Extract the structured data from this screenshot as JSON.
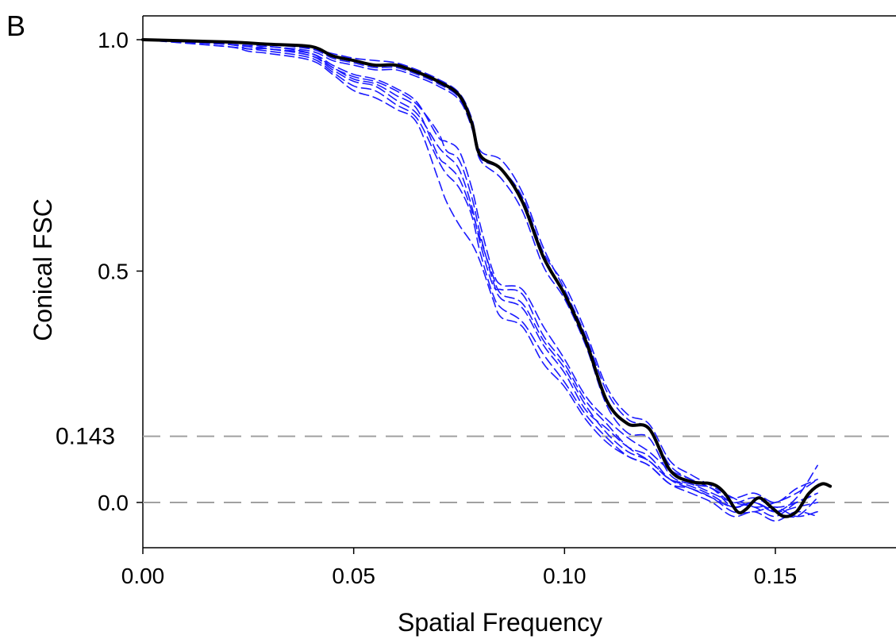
{
  "panel_label": "B",
  "chart_data": {
    "type": "line",
    "title": "",
    "xlabel": "Spatial Frequency",
    "ylabel": "Conical FSC",
    "xlim": [
      0.0,
      0.18
    ],
    "ylim": [
      -0.1,
      1.05
    ],
    "x_ticks": [
      "0.00",
      "0.05",
      "0.10",
      "0.15"
    ],
    "y_ticks": [
      "0.0",
      "0.5",
      "1.0"
    ],
    "reference_lines": [
      {
        "label": "0.143",
        "y": 0.143,
        "style": "dashed",
        "color": "#a0a0a0"
      },
      {
        "label": "",
        "y": 0.0,
        "style": "dashed",
        "color": "#a0a0a0"
      }
    ],
    "colors": {
      "overall": "#000000",
      "directional": "#1a1aff"
    },
    "series": [
      {
        "style": "solid",
        "color": "#000000",
        "x": [
          0.0,
          0.02,
          0.03,
          0.04,
          0.045,
          0.05,
          0.055,
          0.06,
          0.065,
          0.07,
          0.075,
          0.078,
          0.08,
          0.085,
          0.09,
          0.095,
          0.1,
          0.105,
          0.11,
          0.115,
          0.12,
          0.125,
          0.13,
          0.135,
          0.138,
          0.141,
          0.143,
          0.146,
          0.149,
          0.152,
          0.155,
          0.158,
          0.161,
          0.163
        ],
        "y": [
          1.0,
          0.995,
          0.99,
          0.985,
          0.965,
          0.955,
          0.945,
          0.945,
          0.93,
          0.91,
          0.88,
          0.82,
          0.75,
          0.72,
          0.65,
          0.53,
          0.45,
          0.35,
          0.22,
          0.17,
          0.16,
          0.07,
          0.045,
          0.04,
          0.02,
          -0.02,
          -0.015,
          0.01,
          -0.01,
          -0.03,
          -0.02,
          0.02,
          0.04,
          0.035
        ]
      },
      {
        "style": "dashed",
        "color": "#1a1aff",
        "x": [
          0.0,
          0.02,
          0.03,
          0.04,
          0.045,
          0.05,
          0.055,
          0.06,
          0.065,
          0.07,
          0.075,
          0.078,
          0.08,
          0.085,
          0.09,
          0.095,
          0.1,
          0.105,
          0.11,
          0.115,
          0.12,
          0.125,
          0.13,
          0.135,
          0.14,
          0.145,
          0.15,
          0.155,
          0.16
        ],
        "y": [
          1.0,
          0.995,
          0.99,
          0.98,
          0.97,
          0.96,
          0.955,
          0.95,
          0.935,
          0.915,
          0.885,
          0.83,
          0.76,
          0.74,
          0.67,
          0.55,
          0.46,
          0.36,
          0.24,
          0.18,
          0.16,
          0.08,
          0.05,
          0.03,
          0.0,
          0.01,
          -0.01,
          0.0,
          0.02
        ]
      },
      {
        "style": "dashed",
        "color": "#1a1aff",
        "x": [
          0.0,
          0.02,
          0.03,
          0.04,
          0.045,
          0.05,
          0.055,
          0.06,
          0.065,
          0.07,
          0.075,
          0.078,
          0.08,
          0.085,
          0.09,
          0.095,
          0.1,
          0.105,
          0.11,
          0.115,
          0.12,
          0.125,
          0.13,
          0.135,
          0.14,
          0.145,
          0.15,
          0.155,
          0.16
        ],
        "y": [
          1.0,
          0.99,
          0.985,
          0.975,
          0.955,
          0.945,
          0.935,
          0.935,
          0.92,
          0.9,
          0.87,
          0.81,
          0.74,
          0.7,
          0.63,
          0.51,
          0.44,
          0.34,
          0.21,
          0.15,
          0.14,
          0.06,
          0.04,
          0.03,
          -0.01,
          0.0,
          -0.02,
          -0.03,
          0.01
        ]
      },
      {
        "style": "dashed",
        "color": "#1a1aff",
        "x": [
          0.0,
          0.02,
          0.03,
          0.04,
          0.045,
          0.05,
          0.055,
          0.06,
          0.065,
          0.07,
          0.075,
          0.078,
          0.08,
          0.085,
          0.09,
          0.095,
          0.1,
          0.105,
          0.11,
          0.115,
          0.12,
          0.125,
          0.13,
          0.135,
          0.14,
          0.145,
          0.15,
          0.155,
          0.16
        ],
        "y": [
          1.0,
          0.995,
          0.99,
          0.98,
          0.96,
          0.95,
          0.94,
          0.94,
          0.925,
          0.905,
          0.875,
          0.815,
          0.745,
          0.72,
          0.66,
          0.54,
          0.47,
          0.37,
          0.25,
          0.19,
          0.17,
          0.09,
          0.06,
          0.035,
          0.01,
          -0.01,
          0.0,
          0.02,
          0.05
        ]
      },
      {
        "style": "dashed",
        "color": "#1a1aff",
        "x": [
          0.0,
          0.02,
          0.025,
          0.03,
          0.04,
          0.045,
          0.05,
          0.055,
          0.06,
          0.065,
          0.07,
          0.072,
          0.075,
          0.078,
          0.08,
          0.083,
          0.085,
          0.09,
          0.095,
          0.1,
          0.105,
          0.11,
          0.115,
          0.12,
          0.125,
          0.13,
          0.135,
          0.14,
          0.145,
          0.15,
          0.155,
          0.16
        ],
        "y": [
          1.0,
          0.99,
          0.98,
          0.985,
          0.97,
          0.94,
          0.92,
          0.91,
          0.89,
          0.86,
          0.8,
          0.76,
          0.74,
          0.66,
          0.58,
          0.48,
          0.44,
          0.42,
          0.34,
          0.28,
          0.2,
          0.16,
          0.12,
          0.1,
          0.05,
          0.03,
          0.01,
          -0.01,
          0.0,
          -0.02,
          -0.01,
          0.0
        ]
      },
      {
        "style": "dashed",
        "color": "#1a1aff",
        "x": [
          0.0,
          0.02,
          0.025,
          0.03,
          0.04,
          0.045,
          0.05,
          0.055,
          0.06,
          0.065,
          0.07,
          0.072,
          0.075,
          0.078,
          0.08,
          0.083,
          0.085,
          0.09,
          0.095,
          0.1,
          0.105,
          0.11,
          0.115,
          0.12,
          0.125,
          0.13,
          0.135,
          0.14,
          0.145,
          0.15,
          0.155,
          0.16
        ],
        "y": [
          1.0,
          0.99,
          0.985,
          0.98,
          0.965,
          0.935,
          0.91,
          0.9,
          0.87,
          0.84,
          0.77,
          0.75,
          0.72,
          0.64,
          0.56,
          0.47,
          0.46,
          0.45,
          0.36,
          0.3,
          0.22,
          0.17,
          0.12,
          0.09,
          0.05,
          0.04,
          0.02,
          0.0,
          -0.01,
          -0.03,
          0.0,
          0.02
        ]
      },
      {
        "style": "dashed",
        "color": "#1a1aff",
        "x": [
          0.0,
          0.02,
          0.025,
          0.03,
          0.04,
          0.045,
          0.05,
          0.055,
          0.06,
          0.065,
          0.07,
          0.072,
          0.075,
          0.078,
          0.08,
          0.083,
          0.085,
          0.09,
          0.095,
          0.1,
          0.105,
          0.11,
          0.115,
          0.12,
          0.125,
          0.13,
          0.135,
          0.14,
          0.145,
          0.15,
          0.155,
          0.16
        ],
        "y": [
          1.0,
          0.985,
          0.98,
          0.975,
          0.96,
          0.93,
          0.9,
          0.89,
          0.86,
          0.83,
          0.74,
          0.71,
          0.68,
          0.62,
          0.54,
          0.45,
          0.42,
          0.39,
          0.32,
          0.26,
          0.19,
          0.14,
          0.1,
          0.08,
          0.04,
          0.03,
          0.01,
          -0.02,
          -0.02,
          -0.01,
          -0.03,
          -0.02
        ]
      },
      {
        "style": "dashed",
        "color": "#1a1aff",
        "x": [
          0.0,
          0.02,
          0.025,
          0.03,
          0.04,
          0.045,
          0.05,
          0.055,
          0.06,
          0.065,
          0.07,
          0.072,
          0.075,
          0.078,
          0.08,
          0.083,
          0.085,
          0.09,
          0.095,
          0.1,
          0.105,
          0.11,
          0.115,
          0.12,
          0.125,
          0.13,
          0.135,
          0.14,
          0.145,
          0.15,
          0.155,
          0.16
        ],
        "y": [
          1.0,
          0.99,
          0.985,
          0.98,
          0.97,
          0.945,
          0.925,
          0.915,
          0.895,
          0.865,
          0.79,
          0.78,
          0.76,
          0.68,
          0.6,
          0.5,
          0.47,
          0.46,
          0.38,
          0.31,
          0.23,
          0.18,
          0.14,
          0.11,
          0.07,
          0.05,
          0.03,
          0.01,
          0.02,
          0.0,
          0.03,
          0.05
        ]
      },
      {
        "style": "dashed",
        "color": "#1a1aff",
        "x": [
          0.0,
          0.02,
          0.025,
          0.03,
          0.04,
          0.045,
          0.05,
          0.055,
          0.06,
          0.065,
          0.07,
          0.072,
          0.075,
          0.078,
          0.08,
          0.083,
          0.085,
          0.09,
          0.095,
          0.1,
          0.105,
          0.11,
          0.115,
          0.12,
          0.125,
          0.13,
          0.135,
          0.14,
          0.145,
          0.15,
          0.155,
          0.16
        ],
        "y": [
          1.0,
          0.985,
          0.975,
          0.97,
          0.955,
          0.925,
          0.89,
          0.875,
          0.85,
          0.82,
          0.7,
          0.65,
          0.6,
          0.56,
          0.52,
          0.44,
          0.4,
          0.38,
          0.3,
          0.25,
          0.18,
          0.13,
          0.1,
          0.08,
          0.04,
          0.02,
          0.0,
          -0.03,
          -0.02,
          -0.04,
          -0.02,
          -0.03
        ]
      },
      {
        "style": "dashed",
        "color": "#1a1aff",
        "x": [
          0.0,
          0.02,
          0.025,
          0.03,
          0.04,
          0.045,
          0.05,
          0.055,
          0.06,
          0.065,
          0.07,
          0.072,
          0.075,
          0.078,
          0.08,
          0.083,
          0.085,
          0.09,
          0.095,
          0.1,
          0.105,
          0.11,
          0.115,
          0.12,
          0.125,
          0.13,
          0.135,
          0.14,
          0.145,
          0.15,
          0.155,
          0.16
        ],
        "y": [
          1.0,
          0.99,
          0.98,
          0.98,
          0.965,
          0.94,
          0.915,
          0.905,
          0.88,
          0.85,
          0.75,
          0.73,
          0.7,
          0.63,
          0.57,
          0.49,
          0.45,
          0.43,
          0.35,
          0.29,
          0.21,
          0.15,
          0.11,
          0.09,
          0.05,
          0.035,
          0.015,
          -0.01,
          0.0,
          -0.02,
          0.01,
          0.08
        ]
      }
    ]
  }
}
